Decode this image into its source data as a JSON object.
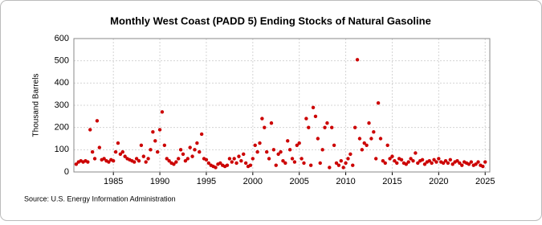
{
  "chart_data": {
    "type": "scatter",
    "title": "Monthly West Coast (PADD 5) Ending Stocks of Natural Gasoline",
    "y_label": "Thousand Barrels",
    "source": "Source: U.S. Energy Information Administration",
    "x": [
      1981,
      1981.25,
      1981.5,
      1981.75,
      1982,
      1982.25,
      1982.5,
      1982.75,
      1983,
      1983.25,
      1983.5,
      1983.75,
      1984,
      1984.25,
      1984.5,
      1984.75,
      1985,
      1985.25,
      1985.5,
      1985.75,
      1986,
      1986.25,
      1986.5,
      1986.75,
      1987,
      1987.25,
      1987.5,
      1987.75,
      1988,
      1988.25,
      1988.5,
      1988.75,
      1989,
      1989.25,
      1989.5,
      1989.75,
      1990,
      1990.25,
      1990.5,
      1990.75,
      1991,
      1991.25,
      1991.5,
      1991.75,
      1992,
      1992.25,
      1992.5,
      1992.75,
      1993,
      1993.25,
      1993.5,
      1993.75,
      1994,
      1994.25,
      1994.5,
      1994.75,
      1995,
      1995.25,
      1995.5,
      1995.75,
      1996,
      1996.25,
      1996.5,
      1996.75,
      1997,
      1997.25,
      1997.5,
      1997.75,
      1998,
      1998.25,
      1998.5,
      1998.75,
      1999,
      1999.25,
      1999.5,
      1999.75,
      2000,
      2000.25,
      2000.5,
      2000.75,
      2001,
      2001.25,
      2001.5,
      2001.75,
      2002,
      2002.25,
      2002.5,
      2002.75,
      2003,
      2003.25,
      2003.5,
      2003.75,
      2004,
      2004.25,
      2004.5,
      2004.75,
      2005,
      2005.25,
      2005.5,
      2005.75,
      2006,
      2006.25,
      2006.5,
      2006.75,
      2007,
      2007.25,
      2007.5,
      2007.75,
      2008,
      2008.25,
      2008.5,
      2008.75,
      2009,
      2009.25,
      2009.5,
      2009.75,
      2010,
      2010.25,
      2010.5,
      2010.75,
      2011,
      2011.25,
      2011.5,
      2011.75,
      2012,
      2012.25,
      2012.5,
      2012.75,
      2013,
      2013.25,
      2013.5,
      2013.75,
      2014,
      2014.25,
      2014.5,
      2014.75,
      2015,
      2015.25,
      2015.5,
      2015.75,
      2016,
      2016.25,
      2016.5,
      2016.75,
      2017,
      2017.25,
      2017.5,
      2017.75,
      2018,
      2018.25,
      2018.5,
      2018.75,
      2019,
      2019.25,
      2019.5,
      2019.75,
      2020,
      2020.25,
      2020.5,
      2020.75,
      2021,
      2021.25,
      2021.5,
      2021.75,
      2022,
      2022.25,
      2022.5,
      2022.75,
      2023,
      2023.25,
      2023.5,
      2023.75,
      2024,
      2024.25,
      2024.5,
      2024.75,
      2025
    ],
    "series": [
      {
        "color": "#cc0000",
        "values": [
          35,
          45,
          50,
          45,
          50,
          45,
          190,
          90,
          60,
          230,
          110,
          55,
          60,
          50,
          45,
          55,
          50,
          90,
          130,
          80,
          90,
          70,
          60,
          55,
          50,
          45,
          60,
          50,
          120,
          70,
          45,
          60,
          100,
          180,
          140,
          90,
          190,
          270,
          120,
          60,
          50,
          40,
          35,
          45,
          60,
          100,
          80,
          50,
          60,
          110,
          70,
          100,
          130,
          90,
          170,
          60,
          55,
          40,
          30,
          25,
          20,
          35,
          40,
          30,
          25,
          30,
          60,
          45,
          60,
          40,
          70,
          50,
          80,
          40,
          25,
          30,
          60,
          120,
          90,
          130,
          240,
          200,
          90,
          60,
          220,
          100,
          30,
          80,
          90,
          50,
          40,
          140,
          100,
          60,
          45,
          120,
          130,
          60,
          40,
          240,
          200,
          30,
          290,
          250,
          150,
          40,
          100,
          200,
          220,
          20,
          200,
          120,
          40,
          30,
          50,
          20,
          40,
          60,
          80,
          30,
          200,
          505,
          150,
          100,
          130,
          120,
          220,
          150,
          180,
          60,
          310,
          150,
          50,
          40,
          120,
          60,
          70,
          50,
          40,
          60,
          55,
          40,
          35,
          45,
          60,
          50,
          85,
          40,
          50,
          55,
          35,
          45,
          50,
          40,
          55,
          45,
          60,
          45,
          40,
          50,
          40,
          55,
          35,
          45,
          50,
          40,
          30,
          45,
          40,
          35,
          45,
          30,
          35,
          45,
          30,
          25,
          45
        ]
      }
    ],
    "xlim": [
      1980.75,
      2025.5
    ],
    "ylim": [
      0,
      600
    ],
    "xticks": [
      1985,
      1990,
      1995,
      2000,
      2005,
      2010,
      2015,
      2020,
      2025
    ],
    "yticks": [
      0,
      100,
      200,
      300,
      400,
      500,
      600
    ],
    "grid": true
  }
}
